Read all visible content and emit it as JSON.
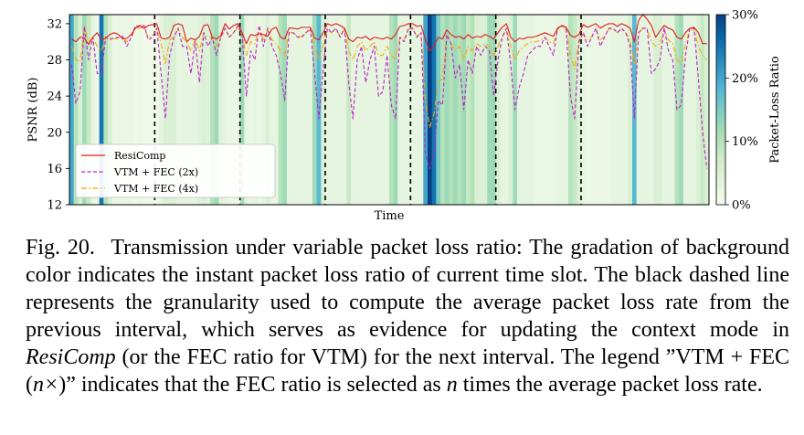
{
  "chart_data": {
    "type": "line",
    "xlabel": "Time",
    "ylabel": "PSNR (dB)",
    "ylim": [
      12,
      33
    ],
    "yticks": [
      12,
      16,
      20,
      24,
      28,
      32
    ],
    "colorbar": {
      "label": "Packet-Loss Ratio",
      "ticks": [
        "0%",
        "10%",
        "20%",
        "30%"
      ],
      "range": [
        0,
        30
      ]
    },
    "background_loss_ratio_pct": [
      20,
      10,
      5,
      12,
      8,
      3,
      2,
      25,
      10,
      5,
      2,
      2,
      2,
      2,
      2,
      1,
      2,
      1,
      1,
      1,
      1,
      3,
      5,
      5,
      5,
      3,
      3,
      3,
      3,
      3,
      4,
      5,
      4,
      10,
      12,
      4,
      3,
      2,
      2,
      2,
      12,
      3,
      2,
      3,
      2,
      3,
      5,
      3,
      3,
      10,
      12,
      3,
      3,
      3,
      3,
      3,
      3,
      12,
      18,
      5,
      3,
      3,
      3,
      3,
      3,
      8,
      3,
      3,
      3,
      3,
      3,
      3,
      3,
      3,
      3,
      10,
      12,
      3,
      3,
      3,
      3,
      3,
      3,
      20,
      30,
      25,
      15,
      10,
      12,
      10,
      12,
      10,
      12,
      8,
      10,
      5,
      5,
      5,
      12,
      12,
      5,
      3,
      3,
      5,
      12,
      3,
      3,
      3,
      3,
      2,
      2,
      2,
      2,
      2,
      3,
      3,
      3,
      10,
      8,
      5,
      3,
      2,
      2,
      2,
      2,
      2,
      2,
      3,
      3,
      3,
      3,
      5,
      18,
      3,
      3,
      3,
      3,
      5,
      5,
      3,
      3,
      3,
      10,
      12,
      3,
      3,
      3,
      5,
      8,
      5
    ],
    "interval_boundaries": [
      20,
      40,
      60,
      80,
      100,
      120
    ],
    "series": [
      {
        "name": "ResiComp",
        "color": "#e41a1c",
        "style": "solid",
        "values": [
          30.3,
          30.0,
          30.5,
          30.4,
          29.7,
          30.5,
          31.0,
          30.2,
          30.4,
          30.8,
          31.0,
          30.8,
          30.3,
          30.4,
          30.8,
          31.5,
          31.8,
          31.5,
          31.8,
          31.9,
          32.0,
          30.4,
          30.3,
          30.5,
          31.8,
          32.0,
          31.8,
          30.0,
          30.4,
          30.2,
          30.6,
          31.8,
          31.9,
          30.5,
          30.3,
          30.7,
          32.0,
          31.4,
          31.8,
          32.0,
          31.0,
          29.8,
          30.8,
          30.7,
          30.9,
          30.8,
          30.6,
          31.4,
          31.6,
          30.5,
          30.3,
          31.5,
          31.5,
          31.4,
          31.6,
          31.6,
          31.6,
          30.4,
          30.2,
          31.0,
          32.0,
          31.8,
          32.0,
          31.8,
          31.5,
          30.3,
          30.0,
          30.5,
          30.4,
          30.6,
          30.2,
          30.5,
          30.4,
          30.3,
          30.5,
          30.3,
          30.8,
          31.7,
          31.8,
          32.0,
          32.0,
          31.7,
          31.8,
          30.2,
          29.0,
          29.5,
          30.5,
          30.3,
          31.3,
          30.8,
          30.5,
          30.6,
          30.3,
          30.8,
          30.4,
          30.6,
          30.5,
          30.8,
          30.6,
          30.3,
          31.0,
          31.6,
          32.0,
          30.5,
          30.0,
          30.4,
          30.3,
          30.5,
          30.5,
          30.6,
          30.8,
          31.0,
          30.8,
          30.6,
          31.5,
          31.8,
          31.6,
          30.7,
          30.5,
          30.8,
          31.9,
          31.6,
          31.8,
          32.0,
          31.5,
          31.8,
          32.0,
          32.0,
          31.7,
          32.0,
          31.8,
          31.5,
          30.0,
          32.4,
          33.0,
          32.5,
          31.8,
          30.5,
          31.2,
          31.8,
          31.5,
          31.3,
          30.5,
          30.3,
          31.0,
          31.5,
          31.6,
          31.0,
          29.8,
          29.8
        ]
      },
      {
        "name": "VTM + FEC (2x)",
        "color": "#c020c8",
        "style": "dashed",
        "values": [
          27.5,
          23.2,
          24.5,
          31.7,
          28.0,
          30.5,
          26.5,
          26.5,
          30.5,
          30.3,
          30.4,
          30.5,
          30.6,
          29.5,
          30.5,
          31.8,
          31.7,
          31.8,
          30.2,
          30.5,
          31.5,
          26.5,
          21.5,
          28.5,
          30.5,
          31.5,
          29.5,
          29.5,
          26.5,
          30.0,
          25.5,
          31.0,
          29.5,
          30.5,
          28.5,
          30.5,
          31.5,
          30.5,
          31.0,
          31.8,
          30.8,
          24.0,
          29.0,
          28.0,
          31.8,
          29.5,
          31.5,
          29.5,
          28.5,
          26.5,
          23.5,
          31.0,
          31.0,
          30.5,
          30.5,
          31.0,
          31.5,
          26.5,
          21.5,
          27.0,
          31.5,
          31.0,
          31.5,
          30.5,
          31.5,
          25.5,
          21.5,
          28.0,
          29.5,
          25.5,
          28.0,
          29.5,
          24.0,
          24.5,
          28.5,
          23.0,
          21.5,
          30.5,
          30.0,
          31.5,
          31.5,
          30.5,
          31.0,
          17.5,
          16.0,
          17.5,
          23.5,
          23.0,
          30.8,
          29.8,
          26.0,
          27.5,
          22.5,
          28.0,
          26.5,
          29.5,
          28.5,
          29.5,
          29.0,
          24.0,
          28.0,
          30.5,
          31.5,
          27.5,
          22.5,
          25.0,
          26.5,
          28.5,
          29.0,
          29.5,
          29.5,
          30.5,
          29.5,
          28.5,
          31.5,
          31.8,
          31.5,
          24.0,
          21.5,
          30.0,
          31.0,
          29.5,
          30.5,
          31.5,
          29.5,
          30.5,
          31.5,
          31.5,
          31.0,
          31.5,
          31.0,
          29.5,
          21.5,
          31.0,
          31.5,
          31.5,
          26.5,
          27.0,
          28.0,
          31.5,
          29.0,
          28.0,
          22.5,
          23.0,
          28.5,
          31.5,
          31.5,
          26.0,
          20.0,
          16.0
        ]
      },
      {
        "name": "VTM + FEC (4x)",
        "color": "#f5a800",
        "style": "dashdot",
        "values": [
          29.5,
          28.0,
          27.8,
          31.6,
          30.0,
          30.5,
          29.5,
          29.0,
          30.5,
          30.2,
          30.3,
          30.4,
          30.5,
          30.0,
          30.4,
          31.6,
          31.5,
          31.6,
          30.5,
          30.6,
          31.4,
          29.8,
          27.5,
          30.2,
          30.5,
          31.4,
          30.5,
          30.0,
          29.0,
          30.3,
          29.0,
          31.0,
          30.5,
          30.5,
          29.5,
          30.5,
          31.3,
          30.6,
          31.0,
          31.6,
          30.7,
          28.5,
          30.0,
          29.8,
          31.6,
          30.2,
          31.3,
          30.2,
          29.8,
          29.0,
          28.5,
          31.0,
          31.0,
          30.6,
          30.6,
          31.0,
          31.3,
          29.5,
          28.0,
          29.5,
          31.4,
          31.0,
          31.4,
          30.6,
          31.3,
          29.0,
          28.0,
          29.5,
          30.0,
          29.0,
          29.5,
          30.0,
          28.5,
          28.5,
          29.5,
          28.5,
          28.0,
          30.5,
          30.2,
          31.4,
          31.4,
          30.6,
          31.0,
          23.5,
          20.5,
          22.0,
          25.5,
          26.0,
          30.6,
          29.8,
          29.0,
          29.5,
          28.0,
          29.5,
          29.0,
          29.8,
          29.5,
          29.8,
          29.5,
          28.5,
          29.5,
          30.5,
          31.4,
          29.5,
          28.0,
          29.0,
          29.5,
          29.8,
          30.0,
          30.0,
          30.2,
          30.5,
          30.0,
          29.8,
          31.4,
          31.6,
          31.4,
          28.5,
          27.0,
          30.2,
          31.0,
          30.2,
          30.6,
          31.4,
          30.2,
          30.6,
          31.4,
          31.4,
          31.0,
          31.4,
          31.0,
          30.2,
          27.5,
          31.0,
          31.5,
          31.4,
          30.0,
          29.5,
          29.8,
          31.4,
          30.2,
          29.8,
          28.0,
          27.5,
          29.8,
          31.4,
          31.4,
          29.5,
          28.5,
          28.0
        ]
      }
    ],
    "legend_position": "lower-left"
  },
  "caption": {
    "label": "Fig. 20.",
    "text_before": "Transmission under variable packet loss ratio: The gradation of background color indicates the instant packet loss ratio of current time slot. The black dashed line represents the granularity used to compute the average packet loss rate from the previous interval, which serves as evidence for updating the context mode in",
    "emph": "ResiComp",
    "text_middle": "(or the FEC ratio for VTM) for the next interval. The legend ”VTM + FEC (",
    "math_nx": "n×",
    "text_after1": ")” indicates that the FEC ratio is selected as",
    "math_n": "n",
    "text_after2": "times the average packet loss rate."
  }
}
